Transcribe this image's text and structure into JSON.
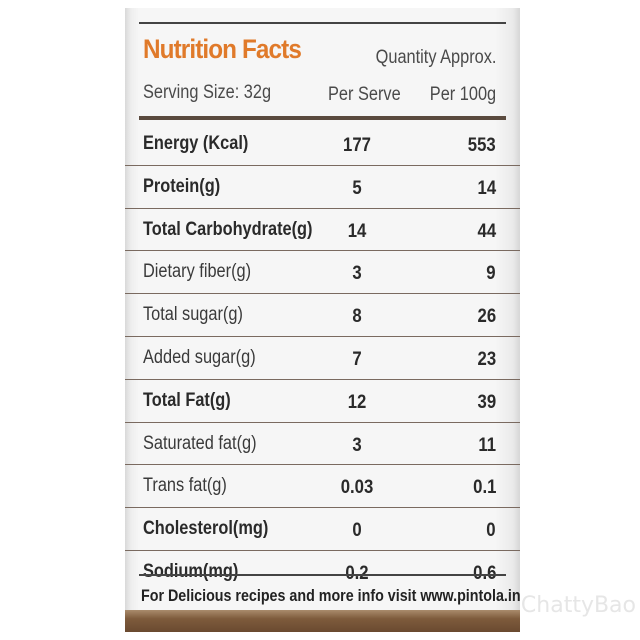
{
  "header": {
    "title": "Nutrition Facts",
    "quantity": "Quantity Approx.",
    "serving": "Serving Size: 32g",
    "col_per_serve": "Per Serve",
    "col_per_100g": "Per 100g"
  },
  "rows": [
    {
      "name": "Energy (Kcal)",
      "per_serve": "177",
      "per_100g": "553",
      "bold": true
    },
    {
      "name": "Protein(g)",
      "per_serve": "5",
      "per_100g": "14",
      "bold": true
    },
    {
      "name": "Total Carbohydrate(g)",
      "per_serve": "14",
      "per_100g": "44",
      "bold": true
    },
    {
      "name": "Dietary fiber(g)",
      "per_serve": "3",
      "per_100g": "9",
      "bold": false
    },
    {
      "name": "Total sugar(g)",
      "per_serve": "8",
      "per_100g": "26",
      "bold": false
    },
    {
      "name": "Added sugar(g)",
      "per_serve": "7",
      "per_100g": "23",
      "bold": false
    },
    {
      "name": "Total Fat(g)",
      "per_serve": "12",
      "per_100g": "39",
      "bold": true
    },
    {
      "name": "Saturated fat(g)",
      "per_serve": "3",
      "per_100g": "11",
      "bold": false
    },
    {
      "name": "Trans fat(g)",
      "per_serve": "0.03",
      "per_100g": "0.1",
      "bold": false
    },
    {
      "name": "Cholesterol(mg)",
      "per_serve": "0",
      "per_100g": "0",
      "bold": true
    },
    {
      "name": "Sodium(mg)",
      "per_serve": "0.2",
      "per_100g": "0.6",
      "bold": true
    }
  ],
  "footer": {
    "text": "For Delicious recipes and more info visit www.pintola.in"
  },
  "watermark": "ChattyBao",
  "colors": {
    "title": "#e07a2a",
    "band": "#7e5b3c"
  }
}
